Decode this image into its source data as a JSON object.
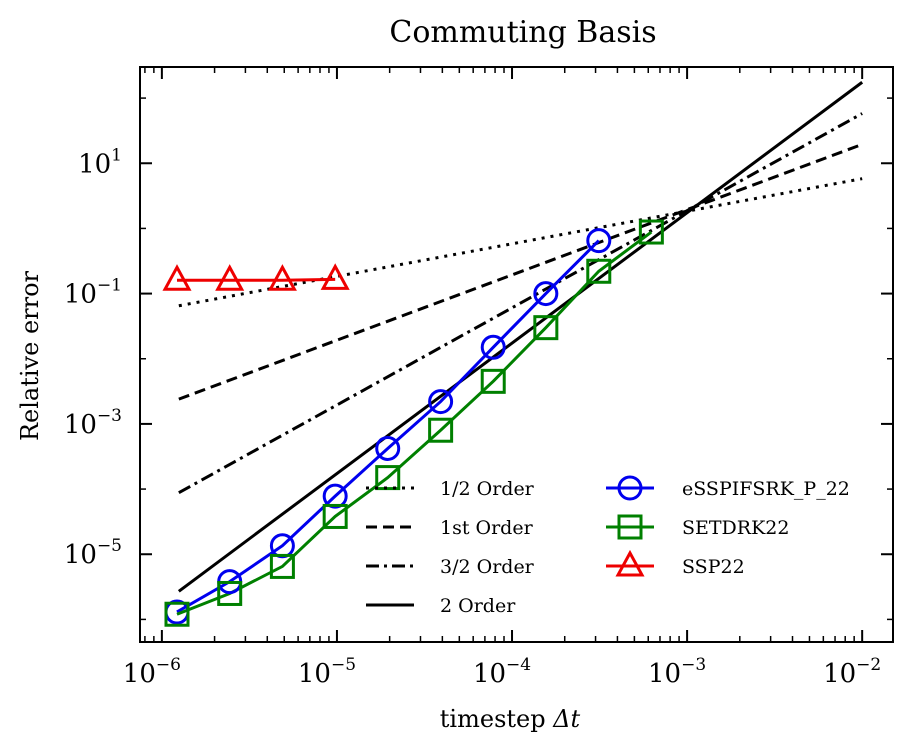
{
  "chart_data": {
    "type": "line",
    "title": "Commuting Basis",
    "xlabel_text": "timestep ",
    "xlabel_symbol": "Δt",
    "ylabel": "Relative error",
    "xscale": "log",
    "yscale": "log",
    "xlim": [
      7.5e-07,
      0.015
    ],
    "ylim": [
      4.5e-07,
      300
    ],
    "x_ticks": [
      {
        "value": 1e-06,
        "base": "10",
        "exp": "−6"
      },
      {
        "value": 1e-05,
        "base": "10",
        "exp": "−5"
      },
      {
        "value": 0.0001,
        "base": "10",
        "exp": "−4"
      },
      {
        "value": 0.001,
        "base": "10",
        "exp": "−3"
      },
      {
        "value": 0.01,
        "base": "10",
        "exp": "−2"
      }
    ],
    "y_ticks": [
      {
        "value": 1e-05,
        "base": "10",
        "exp": "−5"
      },
      {
        "value": 0.001,
        "base": "10",
        "exp": "−3"
      },
      {
        "value": 0.1,
        "base": "10",
        "exp": "−1"
      },
      {
        "value": 10,
        "base": "10",
        "exp": "1"
      }
    ],
    "grid": false,
    "legend_position": "lower-right",
    "reference_lines": [
      {
        "name": "1/2 Order",
        "dash": "dotted",
        "x": [
          1.25e-06,
          0.01
        ],
        "y": [
          0.065,
          5.8
        ]
      },
      {
        "name": "1st Order",
        "dash": "dashed",
        "x": [
          1.25e-06,
          0.01
        ],
        "y": [
          0.0024,
          19.5
        ]
      },
      {
        "name": "3/2 Order",
        "dash": "dashdot",
        "x": [
          1.25e-06,
          0.01
        ],
        "y": [
          8.8e-05,
          58
        ]
      },
      {
        "name": "2 Order",
        "dash": "solid",
        "x": [
          1.25e-06,
          0.01
        ],
        "y": [
          2.7e-06,
          175
        ]
      }
    ],
    "series": [
      {
        "name": "eSSPIFSRK_P_22",
        "color": "#0000ee",
        "marker": "circle",
        "x": [
          1.22e-06,
          2.44e-06,
          4.88e-06,
          9.77e-06,
          1.95e-05,
          3.91e-05,
          7.81e-05,
          0.000156,
          0.000313
        ],
        "y": [
          1.3e-06,
          3.8e-06,
          1.35e-05,
          7.8e-05,
          0.00042,
          0.0022,
          0.015,
          0.1,
          0.65
        ]
      },
      {
        "name": "SETDRK22",
        "color": "#008000",
        "marker": "square",
        "x": [
          1.22e-06,
          2.44e-06,
          4.88e-06,
          9.77e-06,
          1.95e-05,
          3.91e-05,
          7.81e-05,
          0.000156,
          0.000313,
          0.000625
        ],
        "y": [
          1.2e-06,
          2.5e-06,
          6.5e-06,
          3.8e-05,
          0.00015,
          0.0008,
          0.0045,
          0.03,
          0.22,
          0.88
        ]
      },
      {
        "name": "SSP22",
        "color": "#ee0000",
        "marker": "triangle",
        "x": [
          1.22e-06,
          2.44e-06,
          4.88e-06,
          9.77e-06
        ],
        "y": [
          0.16,
          0.16,
          0.16,
          0.165
        ]
      }
    ]
  }
}
